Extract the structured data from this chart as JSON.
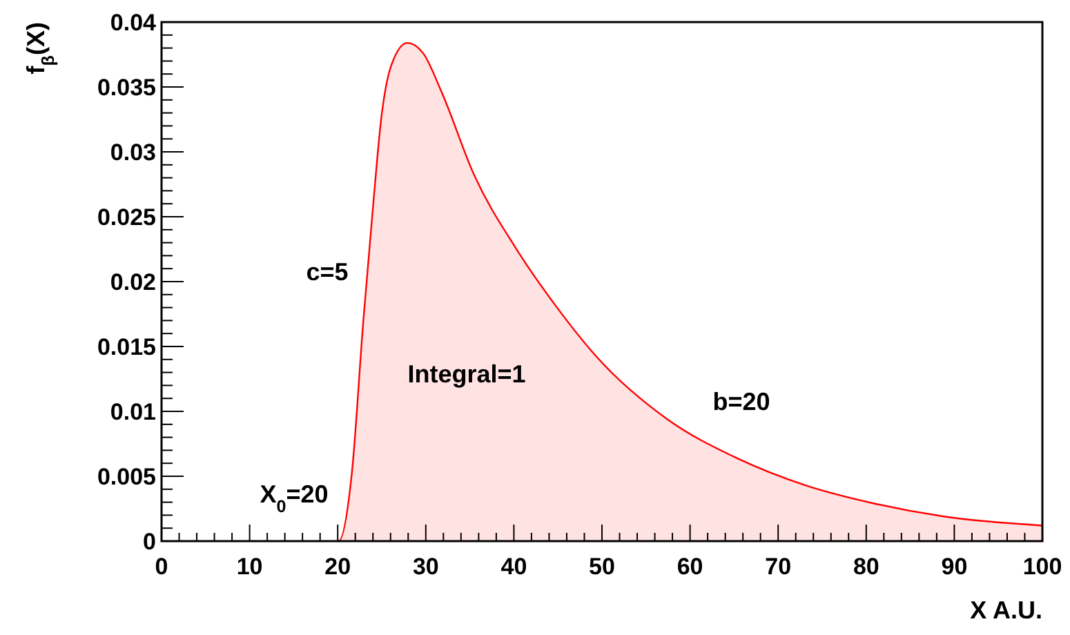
{
  "chart_data": {
    "type": "area",
    "xlabel": "X A.U.",
    "ylabel": "f$_{β}$(X)",
    "x": [
      20,
      20.1,
      21.6,
      22.9,
      24.0,
      25.0,
      26.1,
      27.9,
      29.7,
      31.8,
      35.5,
      40.2,
      44.9,
      49.4,
      57.4,
      65.3,
      73.1,
      80.9,
      88.8,
      100
    ],
    "series": [
      {
        "color": "#ff0000",
        "values": [
          0,
          0,
          0.0052,
          0.0169,
          0.0257,
          0.0329,
          0.0367,
          0.0384,
          0.0376,
          0.0346,
          0.0282,
          0.0226,
          0.018,
          0.0142,
          0.0094,
          0.0064,
          0.0043,
          0.0029,
          0.0019,
          0.0012
        ]
      }
    ],
    "xlim": [
      0,
      100
    ],
    "xticks": [
      0,
      {
        "value": 2,
        "label": null
      },
      {
        "value": 4,
        "label": null
      },
      {
        "value": 6,
        "label": null
      },
      {
        "value": 8,
        "label": null
      },
      10,
      {
        "value": 12,
        "label": null
      },
      {
        "value": 14,
        "label": null
      },
      {
        "value": 16,
        "label": null
      },
      {
        "value": 18,
        "label": null
      },
      20,
      {
        "value": 22,
        "label": null
      },
      {
        "value": 24,
        "label": null
      },
      {
        "value": 26,
        "label": null
      },
      {
        "value": 28,
        "label": null
      },
      30,
      {
        "value": 32,
        "label": null
      },
      {
        "value": 34,
        "label": null
      },
      {
        "value": 36,
        "label": null
      },
      {
        "value": 38,
        "label": null
      },
      40,
      {
        "value": 42,
        "label": null
      },
      {
        "value": 44,
        "label": null
      },
      {
        "value": 46,
        "label": null
      },
      {
        "value": 48,
        "label": null
      },
      50,
      {
        "value": 52,
        "label": null
      },
      {
        "value": 54,
        "label": null
      },
      {
        "value": 56,
        "label": null
      },
      {
        "value": 58,
        "label": null
      },
      60,
      {
        "value": 62,
        "label": null
      },
      {
        "value": 64,
        "label": null
      },
      {
        "value": 66,
        "label": null
      },
      {
        "value": 68,
        "label": null
      },
      70,
      {
        "value": 72,
        "label": null
      },
      {
        "value": 74,
        "label": null
      },
      {
        "value": 76,
        "label": null
      },
      {
        "value": 78,
        "label": null
      },
      80,
      {
        "value": 82,
        "label": null
      },
      {
        "value": 84,
        "label": null
      },
      {
        "value": 86,
        "label": null
      },
      {
        "value": 88,
        "label": null
      },
      90,
      {
        "value": 92,
        "label": null
      },
      {
        "value": 94,
        "label": null
      },
      {
        "value": 96,
        "label": null
      },
      {
        "value": 98,
        "label": null
      },
      100
    ],
    "ylim": [
      0,
      0.04
    ],
    "yticks": [
      0,
      {
        "value": 0.001,
        "label": null
      },
      {
        "value": 0.002,
        "label": null
      },
      {
        "value": 0.003,
        "label": null
      },
      {
        "value": 0.004,
        "label": null
      },
      0.005,
      {
        "value": 0.006,
        "label": null
      },
      {
        "value": 0.007,
        "label": null
      },
      {
        "value": 0.008,
        "label": null
      },
      {
        "value": 0.009,
        "label": null
      },
      0.01,
      {
        "value": 0.011,
        "label": null
      },
      {
        "value": 0.012,
        "label": null
      },
      {
        "value": 0.013,
        "label": null
      },
      {
        "value": 0.014,
        "label": null
      },
      0.015,
      {
        "value": 0.016,
        "label": null
      },
      {
        "value": 0.017,
        "label": null
      },
      {
        "value": 0.018,
        "label": null
      },
      {
        "value": 0.019,
        "label": null
      },
      0.02,
      {
        "value": 0.021,
        "label": null
      },
      {
        "value": 0.022,
        "label": null
      },
      {
        "value": 0.023,
        "label": null
      },
      {
        "value": 0.024,
        "label": null
      },
      0.025,
      {
        "value": 0.026,
        "label": null
      },
      {
        "value": 0.027,
        "label": null
      },
      {
        "value": 0.028,
        "label": null
      },
      {
        "value": 0.029,
        "label": null
      },
      0.03,
      {
        "value": 0.031,
        "label": null
      },
      {
        "value": 0.032,
        "label": null
      },
      {
        "value": 0.033,
        "label": null
      },
      {
        "value": 0.034,
        "label": null
      },
      0.035,
      {
        "value": 0.036,
        "label": null
      },
      {
        "value": 0.037,
        "label": null
      },
      {
        "value": 0.038,
        "label": null
      },
      {
        "value": 0.039,
        "label": null
      },
      0.04
    ],
    "annotations": [
      "c=5",
      "Integral=1",
      "b=20",
      "X$_{0}$=20"
    ]
  }
}
